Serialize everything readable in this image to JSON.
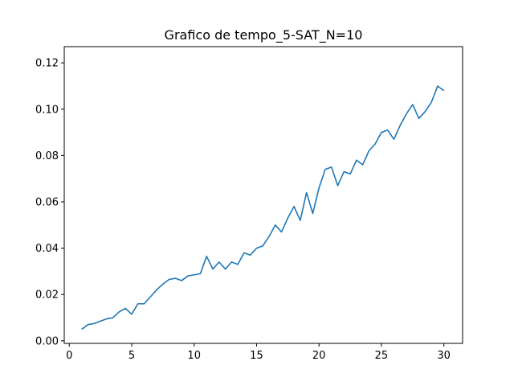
{
  "chart_data": {
    "type": "line",
    "title": "Grafico de tempo_5-SAT_N=10",
    "xlabel": "",
    "ylabel": "",
    "xlim": [
      -0.4,
      31.5
    ],
    "ylim": [
      -0.0011,
      0.127
    ],
    "x_ticks": [
      0,
      5,
      10,
      15,
      20,
      25,
      30
    ],
    "x_tick_labels": [
      "0",
      "5",
      "10",
      "15",
      "20",
      "25",
      "30"
    ],
    "y_ticks": [
      0.0,
      0.02,
      0.04,
      0.06,
      0.08,
      0.1,
      0.12
    ],
    "y_tick_labels": [
      "0.00",
      "0.02",
      "0.04",
      "0.06",
      "0.08",
      "0.10",
      "0.12"
    ],
    "grid": false,
    "series": [
      {
        "color": "#1f77b4",
        "x": [
          1,
          1.5,
          2,
          2.5,
          3,
          3.5,
          4,
          4.5,
          5,
          5.5,
          6,
          6.5,
          7,
          7.5,
          8,
          8.5,
          9,
          9.5,
          10,
          10.5,
          11,
          11.5,
          12,
          12.5,
          13,
          13.5,
          14,
          14.5,
          15,
          15.5,
          16,
          16.5,
          17,
          17.5,
          18,
          18.5,
          19,
          19.5,
          20,
          20.5,
          21,
          21.5,
          22,
          22.5,
          23,
          23.5,
          24,
          24.5,
          25,
          25.5,
          26,
          26.5,
          27,
          27.5,
          28,
          28.5,
          29,
          29.5,
          30
        ],
        "y": [
          0.005,
          0.007,
          0.0075,
          0.0085,
          0.0095,
          0.01,
          0.0125,
          0.014,
          0.0115,
          0.016,
          0.016,
          0.019,
          0.022,
          0.0245,
          0.0265,
          0.027,
          0.026,
          0.028,
          0.0285,
          0.029,
          0.0365,
          0.031,
          0.034,
          0.031,
          0.034,
          0.033,
          0.038,
          0.037,
          0.04,
          0.041,
          0.045,
          0.05,
          0.047,
          0.053,
          0.058,
          0.052,
          0.064,
          0.055,
          0.066,
          0.074,
          0.075,
          0.067,
          0.073,
          0.072,
          0.078,
          0.076,
          0.082,
          0.085,
          0.09,
          0.091,
          0.087,
          0.093,
          0.098,
          0.102,
          0.096,
          0.099,
          0.103,
          0.11,
          0.108
        ]
      }
    ]
  }
}
